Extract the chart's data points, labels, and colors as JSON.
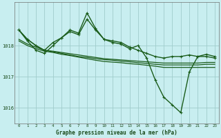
{
  "title": "Graphe pression niveau de la mer (hPa)",
  "bg_color": "#c8eef0",
  "plot_bg_color": "#c8eef0",
  "grid_color": "#a0cccc",
  "line_color": "#1a5c1a",
  "marker_color": "#1a5c1a",
  "ylim": [
    1015.5,
    1019.4
  ],
  "yticks": [
    1016,
    1017,
    1018
  ],
  "xlim": [
    -0.5,
    23.5
  ],
  "xticks": [
    0,
    1,
    2,
    3,
    4,
    5,
    6,
    7,
    8,
    9,
    10,
    11,
    12,
    13,
    14,
    15,
    16,
    17,
    18,
    19,
    20,
    21,
    22,
    23
  ],
  "series": [
    {
      "y": [
        1018.5,
        1018.2,
        1018.0,
        1017.85,
        1018.1,
        1018.25,
        1018.45,
        1018.35,
        1018.85,
        1018.5,
        1018.2,
        1018.15,
        1018.1,
        1017.95,
        1017.85,
        1017.75,
        1017.65,
        1017.6,
        1017.65,
        1017.65,
        1017.7,
        1017.65,
        1017.72,
        1017.65
      ],
      "markers": true,
      "linewidth": 1.0
    },
    {
      "y": [
        1018.2,
        1018.05,
        1017.95,
        1017.85,
        1017.82,
        1017.78,
        1017.74,
        1017.7,
        1017.66,
        1017.62,
        1017.58,
        1017.56,
        1017.54,
        1017.52,
        1017.5,
        1017.48,
        1017.46,
        1017.44,
        1017.44,
        1017.44,
        1017.44,
        1017.44,
        1017.46,
        1017.46
      ],
      "markers": false,
      "linewidth": 0.9
    },
    {
      "y": [
        1018.15,
        1018.0,
        1017.9,
        1017.82,
        1017.78,
        1017.72,
        1017.68,
        1017.63,
        1017.58,
        1017.53,
        1017.49,
        1017.47,
        1017.45,
        1017.42,
        1017.4,
        1017.37,
        1017.34,
        1017.3,
        1017.3,
        1017.3,
        1017.3,
        1017.3,
        1017.3,
        1017.3
      ],
      "markers": false,
      "linewidth": 0.9
    },
    {
      "y": [
        1018.5,
        1018.15,
        1017.85,
        1017.75,
        1018.0,
        1018.25,
        1018.5,
        1018.4,
        1019.05,
        1018.55,
        1018.2,
        1018.1,
        1018.05,
        1017.9,
        1018.0,
        1017.6,
        1016.9,
        1016.35,
        1016.1,
        1015.85,
        1017.15,
        1017.65,
        1017.65,
        1017.6
      ],
      "markers": true,
      "linewidth": 1.0
    },
    {
      "y": [
        1018.5,
        1018.2,
        1018.0,
        1017.85,
        1017.8,
        1017.75,
        1017.7,
        1017.65,
        1017.62,
        1017.58,
        1017.55,
        1017.53,
        1017.5,
        1017.48,
        1017.45,
        1017.43,
        1017.4,
        1017.38,
        1017.38,
        1017.38,
        1017.38,
        1017.38,
        1017.4,
        1017.4
      ],
      "markers": false,
      "linewidth": 0.9
    }
  ]
}
